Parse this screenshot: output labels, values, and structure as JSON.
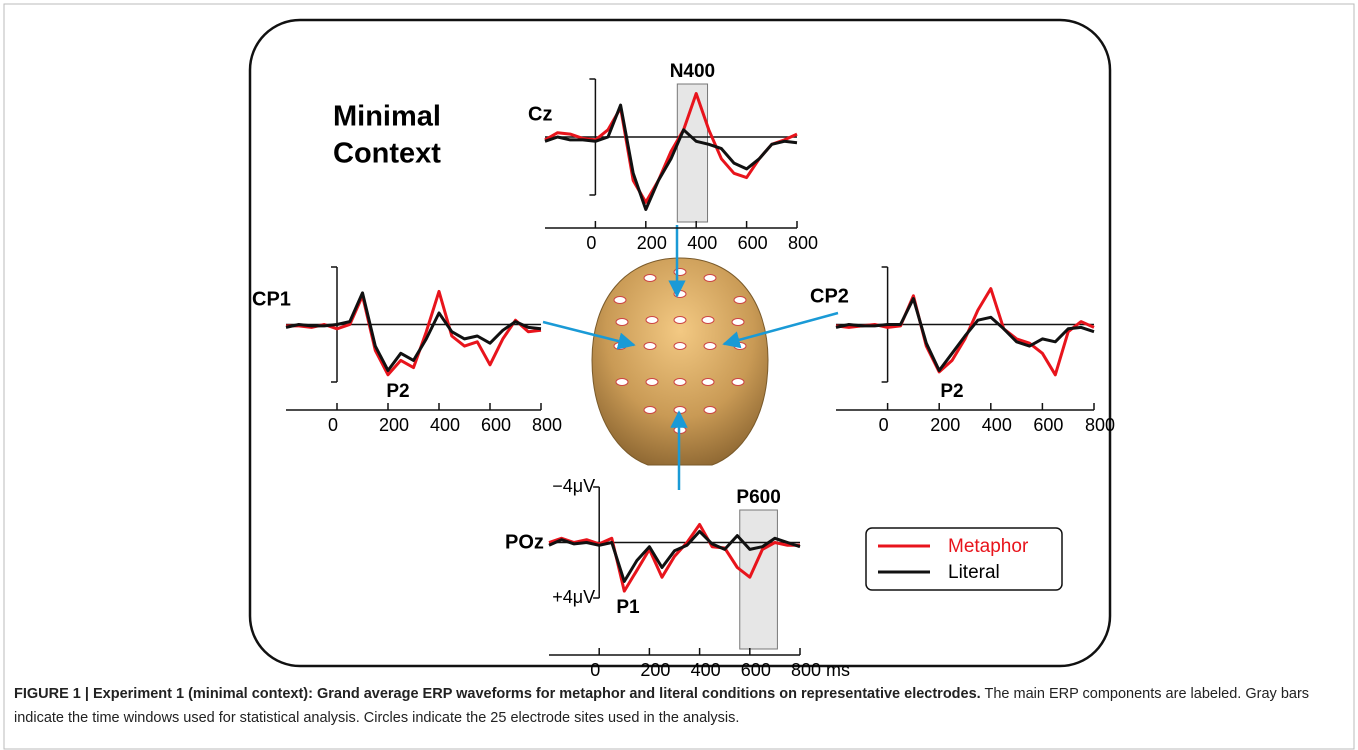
{
  "figure": {
    "heading_line1": "Minimal",
    "heading_line2": "Context",
    "caption_bold": "FIGURE 1 | Experiment 1 (minimal context): Grand average ERP waveforms for metaphor and literal conditions on representative electrodes.",
    "caption_text": "The main ERP components are labeled. Gray bars indicate the time windows used for statistical analysis. Circles indicate the 25 electrode sites used in the analysis."
  },
  "chart_data": [
    {
      "type": "line",
      "title": "Cz",
      "x": [
        -200,
        -150,
        -100,
        -50,
        0,
        50,
        100,
        150,
        200,
        250,
        300,
        350,
        400,
        450,
        500,
        550,
        600,
        650,
        700,
        750,
        800
      ],
      "series": [
        {
          "name": "Metaphor",
          "color": "#e8141c",
          "values": [
            0.2,
            -0.3,
            -0.2,
            0.1,
            0.2,
            -0.5,
            -2.0,
            3.0,
            4.5,
            3.0,
            1.0,
            -0.5,
            -3.0,
            -0.5,
            1.5,
            2.5,
            2.8,
            1.5,
            0.5,
            0.2,
            -0.2
          ]
        },
        {
          "name": "Literal",
          "color": "#111111",
          "values": [
            0.3,
            0,
            0.2,
            0.2,
            0.3,
            0,
            -2.2,
            2.5,
            5.0,
            3.0,
            1.5,
            -0.5,
            0.3,
            0.5,
            0.8,
            1.8,
            2.2,
            1.5,
            0.5,
            0.3,
            0.4
          ]
        }
      ],
      "xlim": [
        -200,
        800
      ],
      "xticks": [
        0,
        200,
        400,
        600,
        800
      ],
      "ylim": [
        -4,
        4
      ],
      "invert_y": true,
      "windows": [
        {
          "label": "N400",
          "start": 325,
          "end": 445
        }
      ],
      "annotations": []
    },
    {
      "type": "line",
      "title": "CP1",
      "x": [
        -200,
        -150,
        -100,
        -50,
        0,
        50,
        100,
        150,
        200,
        250,
        300,
        350,
        400,
        450,
        500,
        550,
        600,
        650,
        700,
        750,
        800
      ],
      "series": [
        {
          "name": "Metaphor",
          "color": "#e8141c",
          "values": [
            0.1,
            0.1,
            0.2,
            0,
            0.3,
            0,
            -2.0,
            1.8,
            3.5,
            2.5,
            3.0,
            0.5,
            -2.3,
            0.8,
            1.5,
            1.2,
            2.8,
            1.0,
            -0.3,
            0.5,
            0.4
          ]
        },
        {
          "name": "Literal",
          "color": "#111111",
          "values": [
            0.2,
            0,
            0.1,
            0.1,
            0,
            -0.2,
            -2.2,
            1.5,
            3.2,
            2.0,
            2.5,
            1.0,
            -0.8,
            0.5,
            1.0,
            0.8,
            1.3,
            0.4,
            -0.2,
            0.2,
            0.3
          ]
        }
      ],
      "xlim": [
        -200,
        800
      ],
      "xticks": [
        0,
        200,
        400,
        600,
        800
      ],
      "ylim": [
        -4,
        4
      ],
      "invert_y": true,
      "windows": [],
      "annotations": [
        "P2"
      ]
    },
    {
      "type": "line",
      "title": "CP2",
      "x": [
        -200,
        -150,
        -100,
        -50,
        0,
        50,
        100,
        150,
        200,
        250,
        300,
        350,
        400,
        450,
        500,
        550,
        600,
        650,
        700,
        750,
        800
      ],
      "series": [
        {
          "name": "Metaphor",
          "color": "#e8141c",
          "values": [
            0.1,
            0.2,
            0.1,
            0,
            0.2,
            0.1,
            -2.0,
            1.5,
            3.3,
            2.5,
            1.0,
            -1.0,
            -2.5,
            0.3,
            1.0,
            1.3,
            2.0,
            3.5,
            0.5,
            -0.2,
            0.2
          ]
        },
        {
          "name": "Literal",
          "color": "#111111",
          "values": [
            0.2,
            0,
            0.1,
            0.1,
            0,
            0,
            -1.8,
            1.3,
            3.2,
            2.0,
            0.8,
            -0.3,
            -0.5,
            0.3,
            1.2,
            1.5,
            1.0,
            1.2,
            0.3,
            0.2,
            0.5
          ]
        }
      ],
      "xlim": [
        -200,
        800
      ],
      "xticks": [
        0,
        200,
        400,
        600,
        800
      ],
      "ylim": [
        -4,
        4
      ],
      "invert_y": true,
      "windows": [],
      "annotations": [
        "P2"
      ]
    },
    {
      "type": "line",
      "title": "POz",
      "x": [
        -200,
        -150,
        -100,
        -50,
        0,
        50,
        100,
        150,
        200,
        250,
        300,
        350,
        400,
        450,
        500,
        550,
        600,
        650,
        700,
        750,
        800
      ],
      "series": [
        {
          "name": "Metaphor",
          "color": "#e8141c",
          "values": [
            0,
            -0.3,
            0,
            -0.2,
            0.1,
            -0.3,
            3.5,
            2.0,
            0.5,
            2.5,
            1.0,
            0,
            -1.3,
            0.3,
            0.4,
            1.8,
            2.5,
            0.5,
            0,
            0.2,
            0.2
          ]
        },
        {
          "name": "Literal",
          "color": "#111111",
          "values": [
            0.2,
            -0.2,
            0.1,
            0,
            0.2,
            0,
            2.8,
            1.3,
            0.3,
            1.8,
            0.6,
            0.2,
            -0.8,
            0.1,
            0.5,
            -0.5,
            0.5,
            0.3,
            -0.3,
            0,
            0.3
          ]
        }
      ],
      "xlim": [
        -200,
        800
      ],
      "xticks": [
        0,
        200,
        400,
        600,
        {
          "value": 800,
          "label": "800 ms"
        }
      ],
      "yticks": [
        {
          "value": -4,
          "label": "−4μV"
        },
        {
          "value": 4,
          "label": "+4μV"
        }
      ],
      "ylim": [
        -4,
        4
      ],
      "invert_y": true,
      "windows": [
        {
          "label": "P600",
          "start": 560,
          "end": 710
        }
      ],
      "annotations": [
        "P1"
      ]
    }
  ]
}
